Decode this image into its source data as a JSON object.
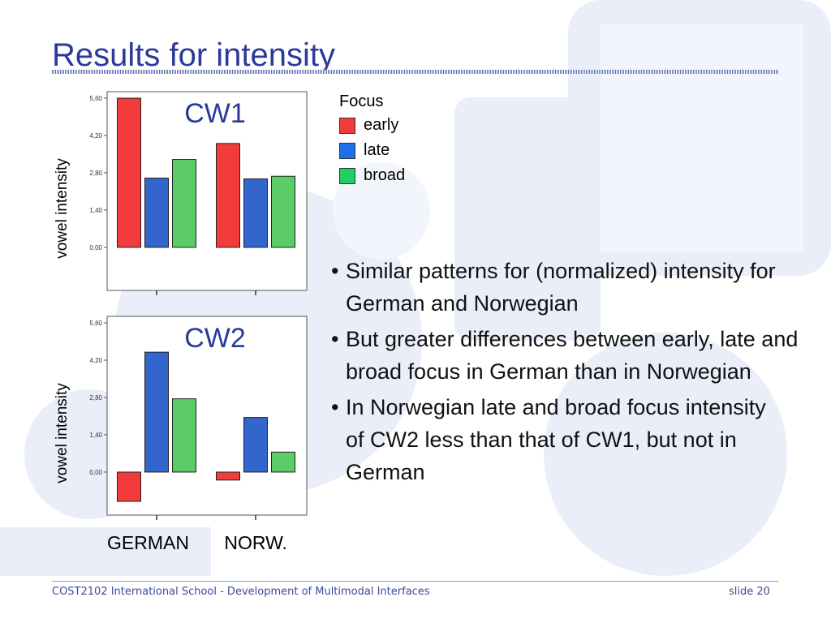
{
  "slide": {
    "title": "Results for intensity",
    "footer_left": "COST2102 International School - Development of Multimodal Interfaces",
    "footer_right": "slide 20"
  },
  "bullets": [
    "Similar patterns for (normalized) intensity for German and Norwegian",
    "But greater differences between early, late and broad focus in German than in Norwegian",
    "In Norwegian late and broad focus intensity of CW2 less than that of CW1, but not in German"
  ],
  "bullet_mark": "•",
  "colors": {
    "title": "#2a3a9a",
    "early": "#f23c3c",
    "late": "#3366cc",
    "broad": "#5ccc66"
  },
  "chart_data": [
    {
      "type": "bar",
      "title": "CW1",
      "ylabel": "vowel intensity",
      "categories": [
        "GERMAN",
        "NORW."
      ],
      "yticks": [
        "0,00",
        "1,40",
        "2,80",
        "4,20",
        "5,60"
      ],
      "ylim": [
        -1.25,
        5.6
      ],
      "legend": {
        "title": "Focus",
        "position": "right"
      },
      "series": [
        {
          "name": "early",
          "values": [
            5.6,
            3.9
          ]
        },
        {
          "name": "late",
          "values": [
            2.6,
            2.57
          ]
        },
        {
          "name": "broad",
          "values": [
            3.3,
            2.67
          ]
        }
      ]
    },
    {
      "type": "bar",
      "title": "CW2",
      "ylabel": "vowel intensity",
      "categories": [
        "GERMAN",
        "NORW."
      ],
      "yticks": [
        "0,00",
        "1,40",
        "2,80",
        "4,20",
        "5,60"
      ],
      "ylim": [
        -1.25,
        5.6
      ],
      "legend": {
        "title": "Focus",
        "position": "right"
      },
      "series": [
        {
          "name": "early",
          "values": [
            -1.1,
            -0.3
          ]
        },
        {
          "name": "late",
          "values": [
            4.5,
            2.05
          ]
        },
        {
          "name": "broad",
          "values": [
            2.75,
            0.75
          ]
        }
      ]
    }
  ]
}
